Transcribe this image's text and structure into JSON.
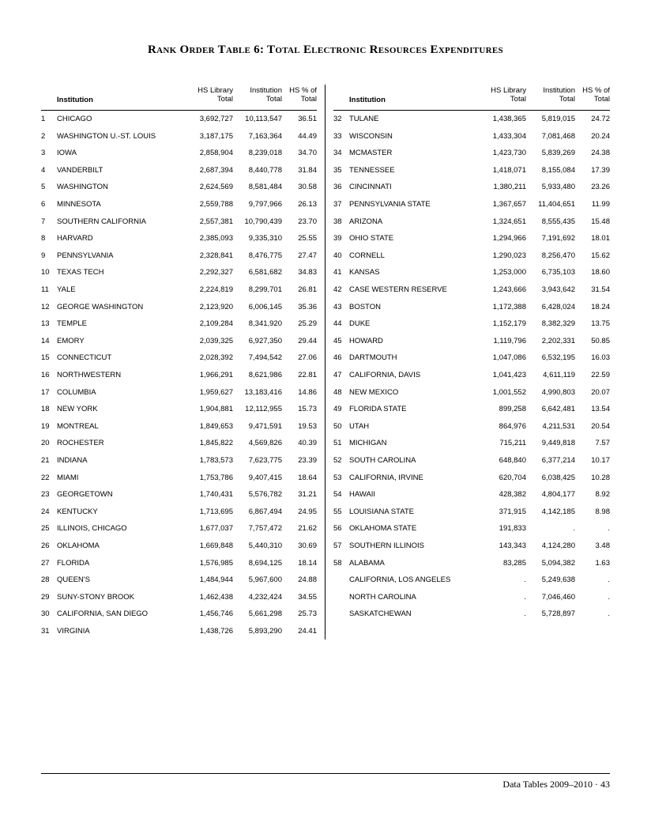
{
  "title": "Rank Order Table 6: Total Electronic Resources Expenditures",
  "footer": "Data Tables 2009–2010 · 43",
  "headers": {
    "institution": "Institution",
    "hs_l1": "HS Library",
    "hs_l2": "Total",
    "inst_l1": "Institution",
    "inst_l2": "Total",
    "pct_l1": "HS % of",
    "pct_l2": "Total"
  },
  "left": [
    {
      "rank": "1",
      "inst": "CHICAGO",
      "hs": "3,692,727",
      "it": "10,113,547",
      "pc": "36.51"
    },
    {
      "rank": "2",
      "inst": "WASHINGTON U.-ST. LOUIS",
      "hs": "3,187,175",
      "it": "7,163,364",
      "pc": "44.49"
    },
    {
      "rank": "3",
      "inst": "IOWA",
      "hs": "2,858,904",
      "it": "8,239,018",
      "pc": "34.70"
    },
    {
      "rank": "4",
      "inst": "VANDERBILT",
      "hs": "2,687,394",
      "it": "8,440,778",
      "pc": "31.84"
    },
    {
      "rank": "5",
      "inst": "WASHINGTON",
      "hs": "2,624,569",
      "it": "8,581,484",
      "pc": "30.58"
    },
    {
      "rank": "6",
      "inst": "MINNESOTA",
      "hs": "2,559,788",
      "it": "9,797,966",
      "pc": "26.13"
    },
    {
      "rank": "7",
      "inst": "SOUTHERN CALIFORNIA",
      "hs": "2,557,381",
      "it": "10,790,439",
      "pc": "23.70"
    },
    {
      "rank": "8",
      "inst": "HARVARD",
      "hs": "2,385,093",
      "it": "9,335,310",
      "pc": "25.55"
    },
    {
      "rank": "9",
      "inst": "PENNSYLVANIA",
      "hs": "2,328,841",
      "it": "8,476,775",
      "pc": "27.47"
    },
    {
      "rank": "10",
      "inst": "TEXAS TECH",
      "hs": "2,292,327",
      "it": "6,581,682",
      "pc": "34.83"
    },
    {
      "rank": "11",
      "inst": "YALE",
      "hs": "2,224,819",
      "it": "8,299,701",
      "pc": "26.81"
    },
    {
      "rank": "12",
      "inst": "GEORGE WASHINGTON",
      "hs": "2,123,920",
      "it": "6,006,145",
      "pc": "35.36"
    },
    {
      "rank": "13",
      "inst": "TEMPLE",
      "hs": "2,109,284",
      "it": "8,341,920",
      "pc": "25.29"
    },
    {
      "rank": "14",
      "inst": "EMORY",
      "hs": "2,039,325",
      "it": "6,927,350",
      "pc": "29.44"
    },
    {
      "rank": "15",
      "inst": "CONNECTICUT",
      "hs": "2,028,392",
      "it": "7,494,542",
      "pc": "27.06"
    },
    {
      "rank": "16",
      "inst": "NORTHWESTERN",
      "hs": "1,966,291",
      "it": "8,621,986",
      "pc": "22.81"
    },
    {
      "rank": "17",
      "inst": "COLUMBIA",
      "hs": "1,959,627",
      "it": "13,183,416",
      "pc": "14.86"
    },
    {
      "rank": "18",
      "inst": "NEW YORK",
      "hs": "1,904,881",
      "it": "12,112,955",
      "pc": "15.73"
    },
    {
      "rank": "19",
      "inst": "MONTREAL",
      "hs": "1,849,653",
      "it": "9,471,591",
      "pc": "19.53"
    },
    {
      "rank": "20",
      "inst": "ROCHESTER",
      "hs": "1,845,822",
      "it": "4,569,826",
      "pc": "40.39"
    },
    {
      "rank": "21",
      "inst": "INDIANA",
      "hs": "1,783,573",
      "it": "7,623,775",
      "pc": "23.39"
    },
    {
      "rank": "22",
      "inst": "MIAMI",
      "hs": "1,753,786",
      "it": "9,407,415",
      "pc": "18.64"
    },
    {
      "rank": "23",
      "inst": "GEORGETOWN",
      "hs": "1,740,431",
      "it": "5,576,782",
      "pc": "31.21"
    },
    {
      "rank": "24",
      "inst": "KENTUCKY",
      "hs": "1,713,695",
      "it": "6,867,494",
      "pc": "24.95"
    },
    {
      "rank": "25",
      "inst": "ILLINOIS, CHICAGO",
      "hs": "1,677,037",
      "it": "7,757,472",
      "pc": "21.62"
    },
    {
      "rank": "26",
      "inst": "OKLAHOMA",
      "hs": "1,669,848",
      "it": "5,440,310",
      "pc": "30.69"
    },
    {
      "rank": "27",
      "inst": "FLORIDA",
      "hs": "1,576,985",
      "it": "8,694,125",
      "pc": "18.14"
    },
    {
      "rank": "28",
      "inst": "QUEEN'S",
      "hs": "1,484,944",
      "it": "5,967,600",
      "pc": "24.88"
    },
    {
      "rank": "29",
      "inst": "SUNY-STONY BROOK",
      "hs": "1,462,438",
      "it": "4,232,424",
      "pc": "34.55"
    },
    {
      "rank": "30",
      "inst": "CALIFORNIA, SAN DIEGO",
      "hs": "1,456,746",
      "it": "5,661,298",
      "pc": "25.73"
    },
    {
      "rank": "31",
      "inst": "VIRGINIA",
      "hs": "1,438,726",
      "it": "5,893,290",
      "pc": "24.41"
    }
  ],
  "right": [
    {
      "rank": "32",
      "inst": "TULANE",
      "hs": "1,438,365",
      "it": "5,819,015",
      "pc": "24.72"
    },
    {
      "rank": "33",
      "inst": "WISCONSIN",
      "hs": "1,433,304",
      "it": "7,081,468",
      "pc": "20.24"
    },
    {
      "rank": "34",
      "inst": "MCMASTER",
      "hs": "1,423,730",
      "it": "5,839,269",
      "pc": "24.38"
    },
    {
      "rank": "35",
      "inst": "TENNESSEE",
      "hs": "1,418,071",
      "it": "8,155,084",
      "pc": "17.39"
    },
    {
      "rank": "36",
      "inst": "CINCINNATI",
      "hs": "1,380,211",
      "it": "5,933,480",
      "pc": "23.26"
    },
    {
      "rank": "37",
      "inst": "PENNSYLVANIA STATE",
      "hs": "1,367,657",
      "it": "11,404,651",
      "pc": "11.99"
    },
    {
      "rank": "38",
      "inst": "ARIZONA",
      "hs": "1,324,651",
      "it": "8,555,435",
      "pc": "15.48"
    },
    {
      "rank": "39",
      "inst": "OHIO STATE",
      "hs": "1,294,966",
      "it": "7,191,692",
      "pc": "18.01"
    },
    {
      "rank": "40",
      "inst": "CORNELL",
      "hs": "1,290,023",
      "it": "8,256,470",
      "pc": "15.62"
    },
    {
      "rank": "41",
      "inst": "KANSAS",
      "hs": "1,253,000",
      "it": "6,735,103",
      "pc": "18.60"
    },
    {
      "rank": "42",
      "inst": "CASE WESTERN RESERVE",
      "hs": "1,243,666",
      "it": "3,943,642",
      "pc": "31.54"
    },
    {
      "rank": "43",
      "inst": "BOSTON",
      "hs": "1,172,388",
      "it": "6,428,024",
      "pc": "18.24"
    },
    {
      "rank": "44",
      "inst": "DUKE",
      "hs": "1,152,179",
      "it": "8,382,329",
      "pc": "13.75"
    },
    {
      "rank": "45",
      "inst": "HOWARD",
      "hs": "1,119,796",
      "it": "2,202,331",
      "pc": "50.85"
    },
    {
      "rank": "46",
      "inst": "DARTMOUTH",
      "hs": "1,047,086",
      "it": "6,532,195",
      "pc": "16.03"
    },
    {
      "rank": "47",
      "inst": "CALIFORNIA, DAVIS",
      "hs": "1,041,423",
      "it": "4,611,119",
      "pc": "22.59"
    },
    {
      "rank": "48",
      "inst": "NEW MEXICO",
      "hs": "1,001,552",
      "it": "4,990,803",
      "pc": "20.07"
    },
    {
      "rank": "49",
      "inst": "FLORIDA STATE",
      "hs": "899,258",
      "it": "6,642,481",
      "pc": "13.54"
    },
    {
      "rank": "50",
      "inst": "UTAH",
      "hs": "864,976",
      "it": "4,211,531",
      "pc": "20.54"
    },
    {
      "rank": "51",
      "inst": "MICHIGAN",
      "hs": "715,211",
      "it": "9,449,818",
      "pc": "7.57"
    },
    {
      "rank": "52",
      "inst": "SOUTH CAROLINA",
      "hs": "648,840",
      "it": "6,377,214",
      "pc": "10.17"
    },
    {
      "rank": "53",
      "inst": "CALIFORNIA, IRVINE",
      "hs": "620,704",
      "it": "6,038,425",
      "pc": "10.28"
    },
    {
      "rank": "54",
      "inst": "HAWAII",
      "hs": "428,382",
      "it": "4,804,177",
      "pc": "8.92"
    },
    {
      "rank": "55",
      "inst": "LOUISIANA STATE",
      "hs": "371,915",
      "it": "4,142,185",
      "pc": "8.98"
    },
    {
      "rank": "56",
      "inst": "OKLAHOMA STATE",
      "hs": "191,833",
      "it": ".",
      "pc": "."
    },
    {
      "rank": "57",
      "inst": "SOUTHERN ILLINOIS",
      "hs": "143,343",
      "it": "4,124,280",
      "pc": "3.48"
    },
    {
      "rank": "58",
      "inst": "ALABAMA",
      "hs": "83,285",
      "it": "5,094,382",
      "pc": "1.63"
    },
    {
      "rank": "",
      "inst": "CALIFORNIA, LOS ANGELES",
      "hs": ".",
      "it": "5,249,638",
      "pc": "."
    },
    {
      "rank": "",
      "inst": "NORTH CAROLINA",
      "hs": ".",
      "it": "7,046,460",
      "pc": "."
    },
    {
      "rank": "",
      "inst": "SASKATCHEWAN",
      "hs": ".",
      "it": "5,728,897",
      "pc": "."
    }
  ]
}
